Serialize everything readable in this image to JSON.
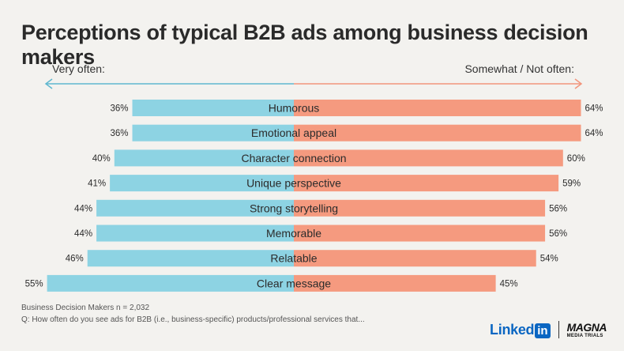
{
  "title": "Perceptions of typical B2B ads among business decision makers",
  "left_label": "Very often:",
  "right_label": "Somewhat / Not often:",
  "footnote_1": "Business Decision Makers n = 2,032",
  "footnote_2": "Q: How often do you see ads for B2B (i.e., business-specific) products/professional services that...",
  "logos": {
    "linkedin_text": "Linked",
    "linkedin_box": "in",
    "magna_top": "MAGNA",
    "magna_bottom": "MEDIA TRIALS"
  },
  "colors": {
    "very_often": "#8dd3e3",
    "not_often": "#f59a7f",
    "arrow_left": "#5fb7cf",
    "arrow_right": "#f2957c",
    "background": "#f3f2ef"
  },
  "chart_data": {
    "type": "bar",
    "orientation": "horizontal-diverging",
    "categories": [
      "Humorous",
      "Emotional appeal",
      "Character connection",
      "Unique perspective",
      "Strong storytelling",
      "Memorable",
      "Relatable",
      "Clear message"
    ],
    "series": [
      {
        "name": "Very often:",
        "values": [
          36,
          36,
          40,
          41,
          44,
          44,
          46,
          55
        ]
      },
      {
        "name": "Somewhat / Not often:",
        "values": [
          64,
          64,
          60,
          59,
          56,
          56,
          54,
          45
        ]
      }
    ],
    "value_suffix": "%",
    "xlim": [
      -55,
      64
    ],
    "grid": false,
    "legend": "none"
  }
}
